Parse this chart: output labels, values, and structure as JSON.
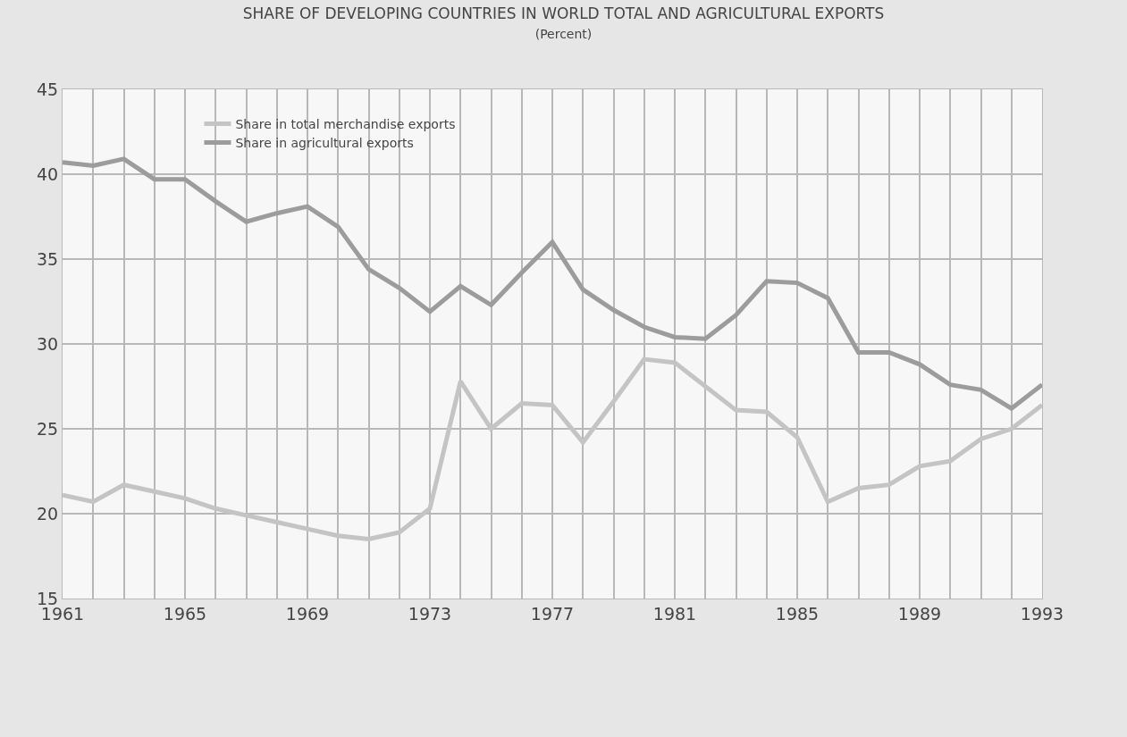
{
  "chart_data": {
    "type": "line",
    "title": "SHARE OF DEVELOPING COUNTRIES IN WORLD TOTAL AND AGRICULTURAL EXPORTS",
    "subtitle": "(Percent)",
    "x": [
      1961,
      1962,
      1963,
      1964,
      1965,
      1966,
      1967,
      1968,
      1969,
      1970,
      1971,
      1972,
      1973,
      1974,
      1975,
      1976,
      1977,
      1978,
      1979,
      1980,
      1981,
      1982,
      1983,
      1984,
      1985,
      1986,
      1987,
      1988,
      1989,
      1990,
      1991,
      1992,
      1993
    ],
    "series": [
      {
        "name": "Share in total merchandise exports",
        "color": "#c4c4c4",
        "values": [
          21.1,
          20.7,
          21.7,
          21.3,
          20.9,
          20.3,
          19.9,
          19.5,
          19.1,
          18.7,
          18.5,
          18.9,
          20.3,
          27.8,
          25.0,
          26.5,
          26.4,
          24.2,
          26.6,
          29.1,
          28.9,
          27.5,
          26.1,
          26.0,
          24.5,
          20.7,
          21.5,
          21.7,
          22.8,
          23.1,
          24.4,
          25.0,
          26.4
        ]
      },
      {
        "name": "Share in agricultural exports",
        "color": "#9c9c9c",
        "values": [
          40.7,
          40.5,
          40.9,
          39.7,
          39.7,
          38.4,
          37.2,
          37.7,
          38.1,
          36.9,
          34.4,
          33.3,
          31.9,
          33.4,
          32.3,
          34.2,
          36.0,
          33.2,
          32.0,
          31.0,
          30.4,
          30.3,
          31.7,
          33.7,
          33.6,
          32.7,
          29.5,
          29.5,
          28.8,
          27.6,
          27.3,
          26.2,
          27.6
        ]
      }
    ],
    "xlim": [
      1961,
      1993
    ],
    "xticks": [
      1961,
      {
        "value": 1962,
        "label": null
      },
      {
        "value": 1963,
        "label": null
      },
      {
        "value": 1964,
        "label": null
      },
      1965,
      {
        "value": 1966,
        "label": null
      },
      {
        "value": 1967,
        "label": null
      },
      {
        "value": 1968,
        "label": null
      },
      1969,
      {
        "value": 1970,
        "label": null
      },
      {
        "value": 1971,
        "label": null
      },
      {
        "value": 1972,
        "label": null
      },
      1973,
      {
        "value": 1974,
        "label": null
      },
      {
        "value": 1975,
        "label": null
      },
      {
        "value": 1976,
        "label": null
      },
      1977,
      {
        "value": 1978,
        "label": null
      },
      {
        "value": 1979,
        "label": null
      },
      {
        "value": 1980,
        "label": null
      },
      1981,
      {
        "value": 1982,
        "label": null
      },
      {
        "value": 1983,
        "label": null
      },
      {
        "value": 1984,
        "label": null
      },
      1985,
      {
        "value": 1986,
        "label": null
      },
      {
        "value": 1987,
        "label": null
      },
      {
        "value": 1988,
        "label": null
      },
      1989,
      {
        "value": 1990,
        "label": null
      },
      {
        "value": 1991,
        "label": null
      },
      {
        "value": 1992,
        "label": null
      },
      1993
    ],
    "ylim": [
      15,
      45
    ],
    "yticks": [
      15,
      20,
      25,
      30,
      35,
      40,
      45
    ],
    "grid": true,
    "legend": "top left",
    "marker": "none",
    "line_style": "solid"
  }
}
